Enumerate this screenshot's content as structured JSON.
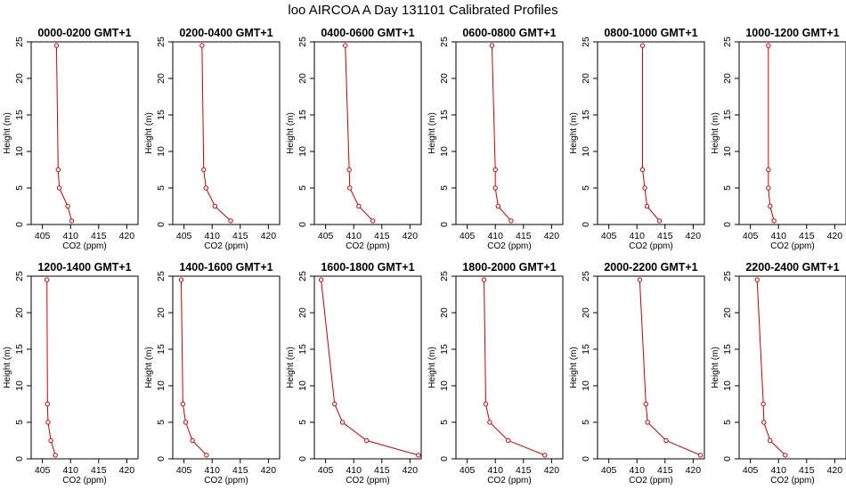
{
  "title": "loo AIRCOA A  Day 131101  Calibrated Profiles",
  "chart_data": {
    "type": "line",
    "xlabel": "CO2 (ppm)",
    "ylabel": "Height (m)",
    "xlim": [
      403,
      422
    ],
    "ylim": [
      0,
      25
    ],
    "xticks": [
      405,
      410,
      415,
      420
    ],
    "yticks": [
      0,
      5,
      10,
      15,
      20,
      25
    ],
    "heights": [
      24.5,
      7.5,
      5.0,
      2.5,
      0.5
    ],
    "color": "#cc0000",
    "panels": [
      {
        "title": "0000-0200 GMT+1",
        "x": [
          407.5,
          407.8,
          408.0,
          409.5,
          410.2
        ]
      },
      {
        "title": "0200-0400 GMT+1",
        "x": [
          408.2,
          408.5,
          408.9,
          410.5,
          413.3
        ]
      },
      {
        "title": "0400-0600 GMT+1",
        "x": [
          408.5,
          409.2,
          409.3,
          410.9,
          413.4
        ]
      },
      {
        "title": "0600-0800 GMT+1",
        "x": [
          409.4,
          410.0,
          410.0,
          410.5,
          412.8
        ]
      },
      {
        "title": "0800-1000 GMT+1",
        "x": [
          411.0,
          411.0,
          411.4,
          411.8,
          414.0
        ]
      },
      {
        "title": "1000-1200 GMT+1",
        "x": [
          408.2,
          408.2,
          408.2,
          408.5,
          409.2
        ]
      },
      {
        "title": "1200-1400 GMT+1",
        "x": [
          405.8,
          405.9,
          406.0,
          406.5,
          407.3
        ]
      },
      {
        "title": "1400-1600 GMT+1",
        "x": [
          404.5,
          404.8,
          405.3,
          406.5,
          409.0
        ]
      },
      {
        "title": "1600-1800 GMT+1",
        "x": [
          404.2,
          406.6,
          408.0,
          412.3,
          421.5
        ]
      },
      {
        "title": "1800-2000 GMT+1",
        "x": [
          408.0,
          408.3,
          409.0,
          412.3,
          418.8
        ]
      },
      {
        "title": "2000-2200 GMT+1",
        "x": [
          410.5,
          411.6,
          411.9,
          415.2,
          421.3
        ]
      },
      {
        "title": "2200-2400 GMT+1",
        "x": [
          406.2,
          407.3,
          407.4,
          408.5,
          411.2
        ]
      }
    ]
  }
}
